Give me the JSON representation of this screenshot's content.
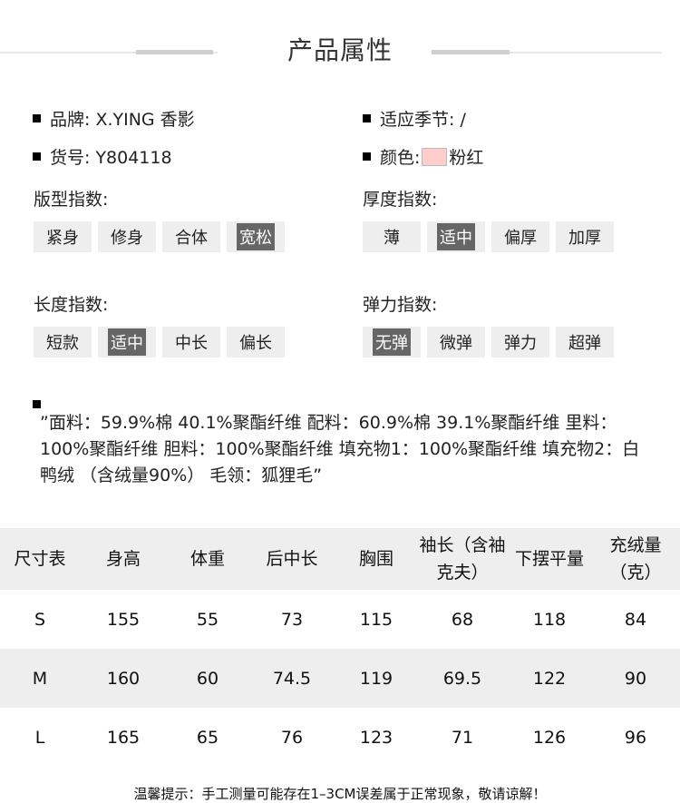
{
  "title": "产品属性",
  "properties": {
    "brand": "品牌: X.YING 香影",
    "season": "适应季节: /",
    "item_no": "货号: Y804118",
    "color_label": "颜色:",
    "color_value": "粉红",
    "color_swatch": "#ffcccc"
  },
  "indices": [
    {
      "label": "版型指数:",
      "options": [
        "紧身",
        "修身",
        "合体",
        "宽松"
      ],
      "selected": 3
    },
    {
      "label": "厚度指数:",
      "options": [
        "薄",
        "适中",
        "偏厚",
        "加厚"
      ],
      "selected": 1
    },
    {
      "label": "长度指数:",
      "options": [
        "短款",
        "适中",
        "中长",
        "偏长"
      ],
      "selected": 1
    },
    {
      "label": "弹力指数:",
      "options": [
        "无弹",
        "微弹",
        "弹力",
        "超弹"
      ],
      "selected": 0
    }
  ],
  "material": "”面料：59.9%棉 40.1%聚酯纤维 配料：60.9%棉 39.1%聚酯纤维 里料：100%聚酯纤维 胆料：100%聚酯纤维 填充物1：100%聚酯纤维 填充物2：白鸭绒 （含绒量90%） 毛领：狐狸毛”",
  "size_table": {
    "headers": [
      "尺寸表",
      "身高",
      "体重",
      "后中长",
      "胸围",
      "袖长（含袖克夫）",
      "下摆平量",
      "充绒量（克）"
    ],
    "rows": [
      [
        "S",
        "155",
        "55",
        "73",
        "115",
        "68",
        "118",
        "84"
      ],
      [
        "M",
        "160",
        "60",
        "74.5",
        "119",
        "69.5",
        "122",
        "90"
      ],
      [
        "L",
        "165",
        "65",
        "76",
        "123",
        "71",
        "126",
        "96"
      ]
    ]
  },
  "note": "温馨提示：手工测量可能存在1–3CM误差属于正常现象，敬请谅解！"
}
